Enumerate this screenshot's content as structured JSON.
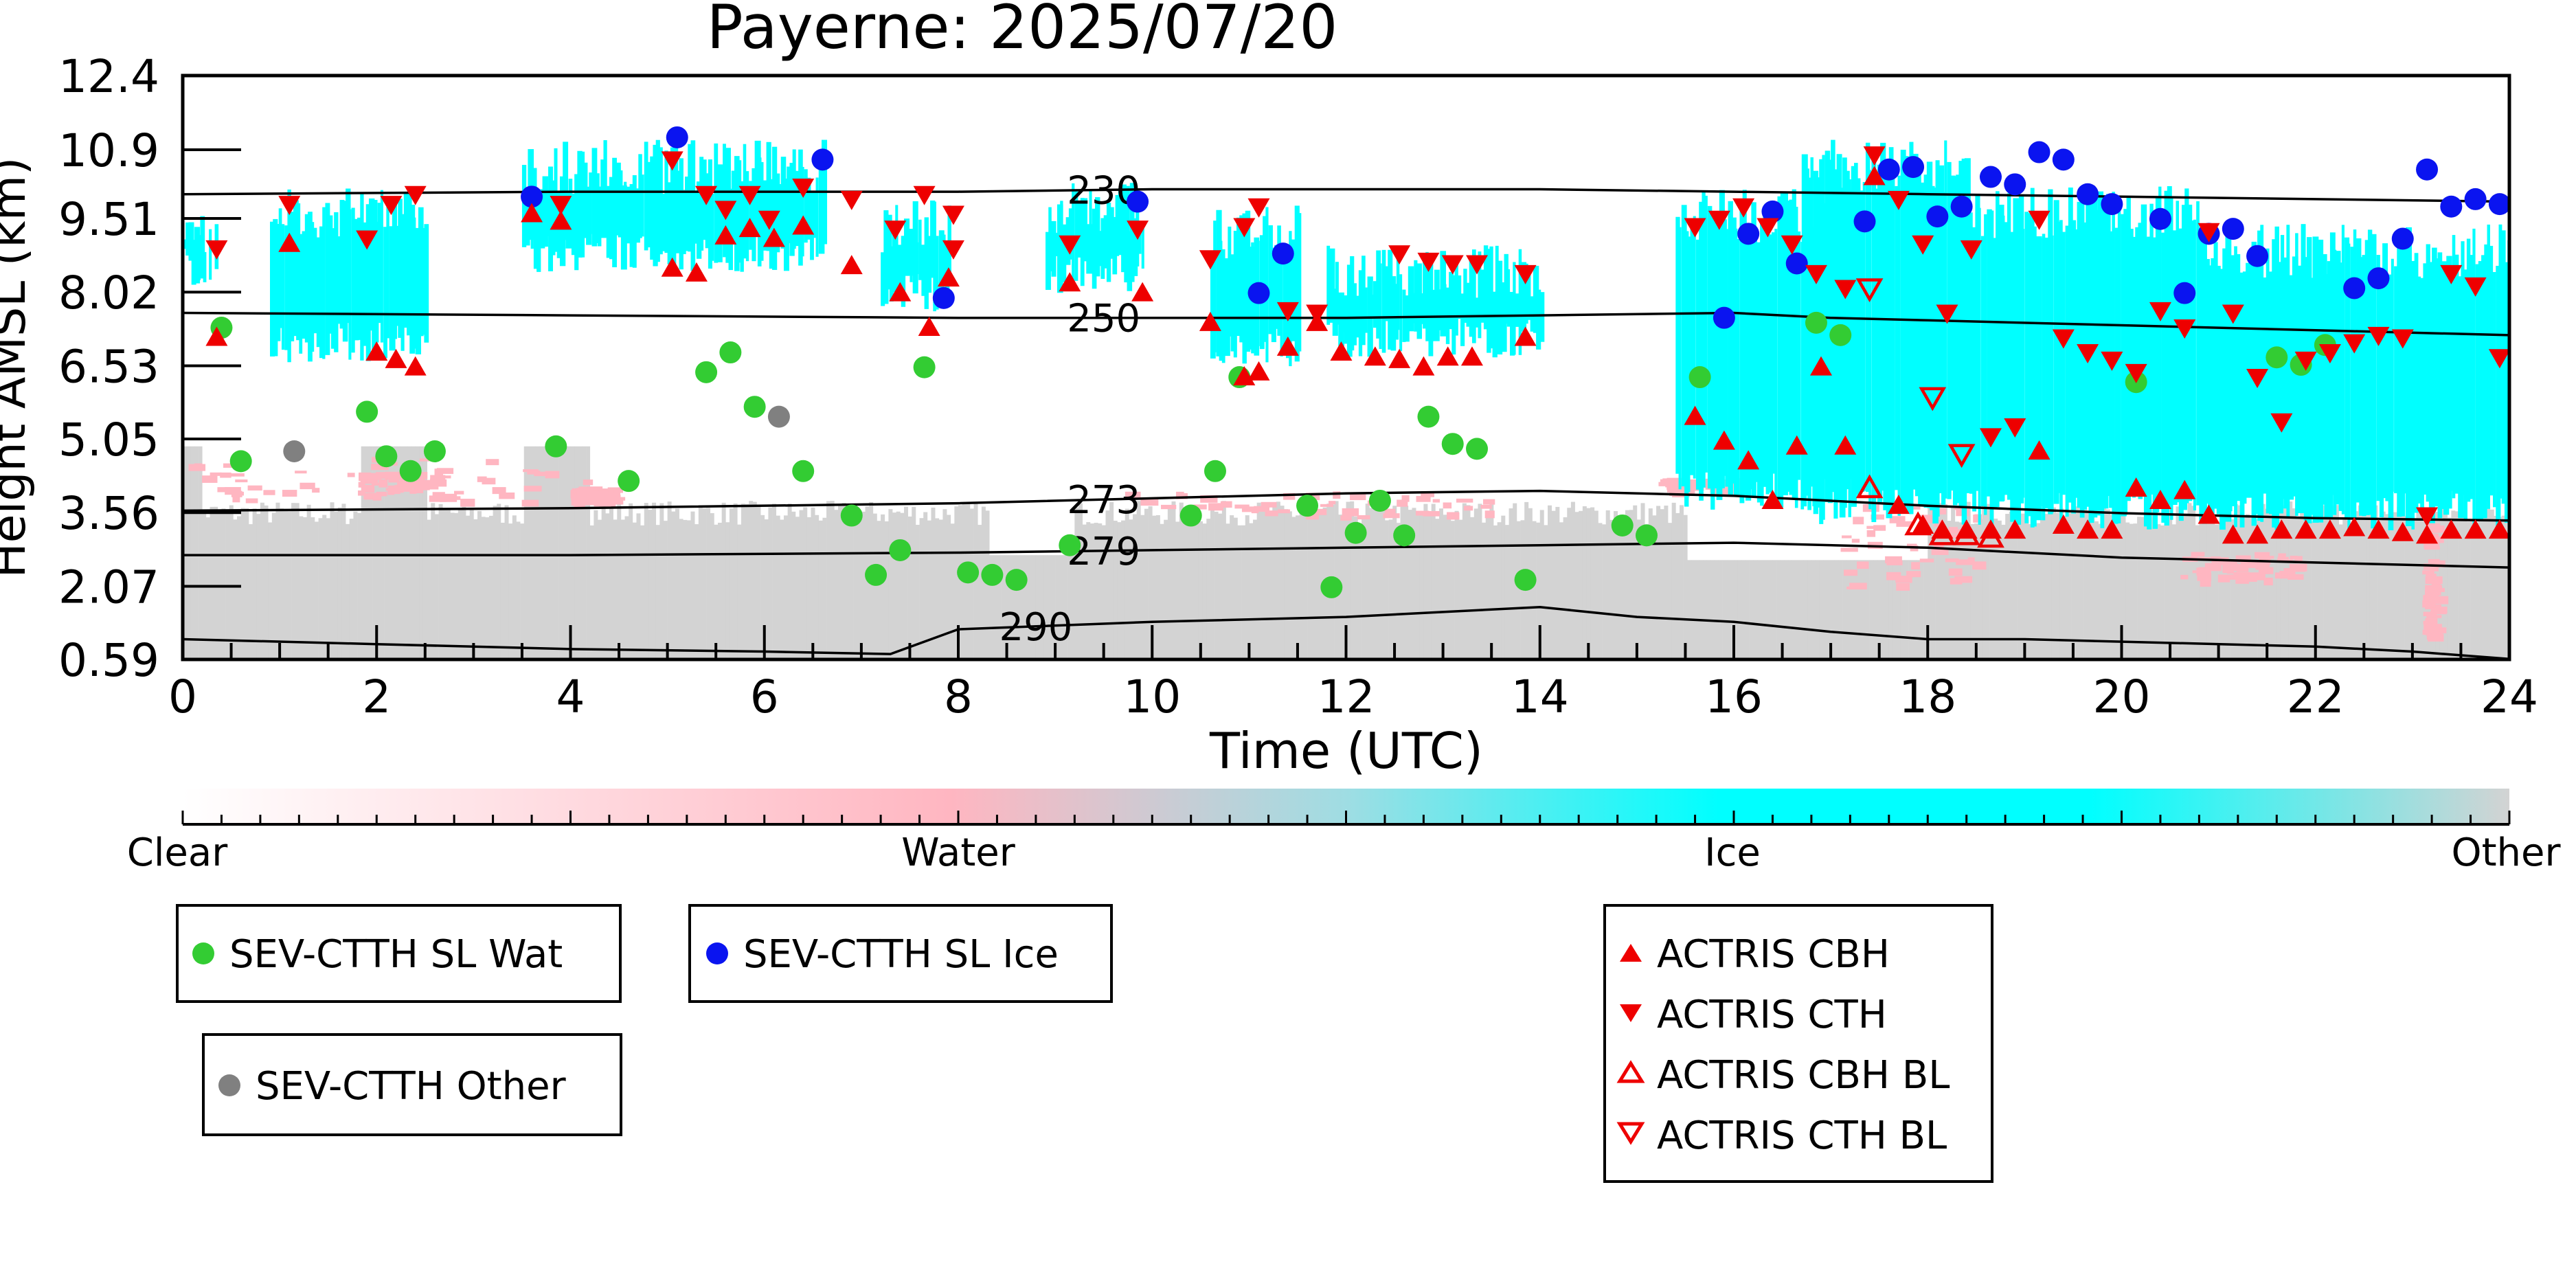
{
  "colors": {
    "water_dot": "#33cc33",
    "ice_dot": "#0a14f0",
    "other_dot": "#808080",
    "actris": "#ee0000",
    "ice_fill": "#00ffff",
    "other_fill": "#d3d3d3",
    "water_fill": "#ffb6c1"
  },
  "chart_data": {
    "type": "scatter",
    "title": "Payerne: 2025/07/20",
    "xlabel": "Time (UTC)",
    "ylabel": "Height AMSL (km)",
    "xlim": [
      0,
      24
    ],
    "ylim": [
      0.59,
      12.4
    ],
    "xticks": [
      "0",
      "2",
      "4",
      "6",
      "8",
      "10",
      "12",
      "14",
      "16",
      "18",
      "20",
      "22",
      "24"
    ],
    "yticks": [
      "12.4",
      "10.9",
      "9.51",
      "8.02",
      "6.53",
      "5.05",
      "3.56",
      "2.07",
      "0.59"
    ],
    "grid": false,
    "contours": [
      {
        "label": "230",
        "label_x": 9.5,
        "points": [
          [
            0,
            10.0
          ],
          [
            4,
            10.05
          ],
          [
            8,
            10.05
          ],
          [
            10,
            10.1
          ],
          [
            12,
            10.1
          ],
          [
            14,
            10.1
          ],
          [
            16,
            10.05
          ],
          [
            18,
            10.0
          ],
          [
            20,
            9.95
          ],
          [
            22,
            9.9
          ],
          [
            24,
            9.85
          ]
        ]
      },
      {
        "label": "250",
        "label_x": 9.5,
        "points": [
          [
            0,
            7.6
          ],
          [
            4,
            7.55
          ],
          [
            8,
            7.5
          ],
          [
            10,
            7.5
          ],
          [
            12,
            7.5
          ],
          [
            14,
            7.55
          ],
          [
            16,
            7.6
          ],
          [
            17,
            7.5
          ],
          [
            18,
            7.45
          ],
          [
            20,
            7.35
          ],
          [
            22,
            7.25
          ],
          [
            24,
            7.15
          ]
        ]
      },
      {
        "label": "273",
        "label_x": 9.5,
        "points": [
          [
            0,
            3.6
          ],
          [
            4,
            3.65
          ],
          [
            8,
            3.75
          ],
          [
            10,
            3.85
          ],
          [
            12,
            3.95
          ],
          [
            14,
            4.0
          ],
          [
            16,
            3.9
          ],
          [
            18,
            3.7
          ],
          [
            20,
            3.55
          ],
          [
            22,
            3.45
          ],
          [
            24,
            3.4
          ]
        ]
      },
      {
        "label": "279",
        "label_x": 9.5,
        "points": [
          [
            0,
            2.7
          ],
          [
            4,
            2.7
          ],
          [
            8,
            2.75
          ],
          [
            10,
            2.8
          ],
          [
            12,
            2.85
          ],
          [
            14,
            2.9
          ],
          [
            16,
            2.95
          ],
          [
            18,
            2.85
          ],
          [
            20,
            2.65
          ],
          [
            22,
            2.55
          ],
          [
            24,
            2.45
          ]
        ]
      },
      {
        "label": "290",
        "label_x": 8.8,
        "points": [
          [
            0,
            1.0
          ],
          [
            2,
            0.9
          ],
          [
            4,
            0.8
          ],
          [
            6,
            0.75
          ],
          [
            7.3,
            0.7
          ],
          [
            8,
            1.2
          ],
          [
            10,
            1.35
          ],
          [
            12,
            1.45
          ],
          [
            13,
            1.55
          ],
          [
            14,
            1.65
          ],
          [
            15,
            1.45
          ],
          [
            16,
            1.35
          ],
          [
            17,
            1.15
          ],
          [
            18,
            1.0
          ],
          [
            19,
            1.0
          ],
          [
            20,
            0.95
          ],
          [
            22,
            0.85
          ],
          [
            23,
            0.75
          ],
          [
            24,
            0.6
          ]
        ]
      }
    ],
    "series": [
      {
        "name": "SEV-CTTH SL Wat",
        "marker": "circle",
        "points": [
          [
            0.4,
            7.3
          ],
          [
            0.6,
            4.6
          ],
          [
            1.9,
            5.6
          ],
          [
            2.1,
            4.7
          ],
          [
            2.35,
            4.4
          ],
          [
            2.6,
            4.8
          ],
          [
            3.85,
            4.9
          ],
          [
            4.6,
            4.2
          ],
          [
            5.4,
            6.4
          ],
          [
            5.65,
            6.8
          ],
          [
            5.9,
            5.7
          ],
          [
            6.4,
            4.4
          ],
          [
            6.9,
            3.5
          ],
          [
            7.15,
            2.3
          ],
          [
            7.4,
            2.8
          ],
          [
            7.65,
            6.5
          ],
          [
            8.1,
            2.35
          ],
          [
            8.35,
            2.3
          ],
          [
            8.6,
            2.2
          ],
          [
            9.15,
            2.9
          ],
          [
            10.4,
            3.5
          ],
          [
            10.65,
            4.4
          ],
          [
            10.9,
            6.3
          ],
          [
            11.6,
            3.7
          ],
          [
            11.85,
            2.05
          ],
          [
            12.1,
            3.15
          ],
          [
            12.35,
            3.8
          ],
          [
            12.6,
            3.1
          ],
          [
            12.85,
            5.5
          ],
          [
            13.1,
            4.95
          ],
          [
            13.35,
            4.85
          ],
          [
            13.85,
            2.2
          ],
          [
            14.85,
            3.3
          ],
          [
            15.1,
            3.1
          ],
          [
            15.65,
            6.3
          ],
          [
            16.85,
            7.4
          ],
          [
            17.1,
            7.15
          ],
          [
            20.15,
            6.2
          ],
          [
            21.6,
            6.7
          ],
          [
            21.85,
            6.55
          ],
          [
            22.1,
            6.95
          ]
        ]
      },
      {
        "name": "SEV-CTTH SL Ice",
        "marker": "circle",
        "points": [
          [
            3.6,
            9.95
          ],
          [
            5.1,
            11.15
          ],
          [
            6.6,
            10.7
          ],
          [
            7.85,
            7.9
          ],
          [
            9.85,
            9.85
          ],
          [
            11.1,
            8.0
          ],
          [
            11.35,
            8.8
          ],
          [
            15.9,
            7.5
          ],
          [
            16.15,
            9.2
          ],
          [
            16.4,
            9.65
          ],
          [
            16.65,
            8.6
          ],
          [
            17.35,
            9.45
          ],
          [
            17.6,
            10.5
          ],
          [
            17.85,
            10.55
          ],
          [
            18.1,
            9.55
          ],
          [
            18.35,
            9.75
          ],
          [
            18.65,
            10.35
          ],
          [
            18.9,
            10.2
          ],
          [
            19.15,
            10.85
          ],
          [
            19.4,
            10.7
          ],
          [
            19.65,
            10.0
          ],
          [
            19.9,
            9.8
          ],
          [
            20.4,
            9.5
          ],
          [
            20.65,
            8.0
          ],
          [
            20.9,
            9.2
          ],
          [
            21.15,
            9.3
          ],
          [
            21.4,
            8.75
          ],
          [
            22.4,
            8.1
          ],
          [
            22.65,
            8.3
          ],
          [
            22.9,
            9.1
          ],
          [
            23.15,
            10.5
          ],
          [
            23.4,
            9.75
          ],
          [
            23.65,
            9.9
          ],
          [
            23.9,
            9.8
          ]
        ]
      },
      {
        "name": "SEV-CTTH Other",
        "marker": "circle",
        "points": [
          [
            1.15,
            4.8
          ],
          [
            6.15,
            5.5
          ]
        ]
      },
      {
        "name": "ACTRIS CBH",
        "marker": "triangle-up",
        "points": [
          [
            0.35,
            7.1
          ],
          [
            1.1,
            9.0
          ],
          [
            2.0,
            6.8
          ],
          [
            2.2,
            6.65
          ],
          [
            2.4,
            6.5
          ],
          [
            3.6,
            9.6
          ],
          [
            3.9,
            9.45
          ],
          [
            5.05,
            8.5
          ],
          [
            5.3,
            8.4
          ],
          [
            5.6,
            9.15
          ],
          [
            5.85,
            9.3
          ],
          [
            6.1,
            9.1
          ],
          [
            6.4,
            9.35
          ],
          [
            6.9,
            8.55
          ],
          [
            7.4,
            8.0
          ],
          [
            7.7,
            7.3
          ],
          [
            7.9,
            8.3
          ],
          [
            9.15,
            8.2
          ],
          [
            9.9,
            8.0
          ],
          [
            10.6,
            7.4
          ],
          [
            10.95,
            6.3
          ],
          [
            11.1,
            6.4
          ],
          [
            11.4,
            6.9
          ],
          [
            11.7,
            7.4
          ],
          [
            11.95,
            6.8
          ],
          [
            12.3,
            6.7
          ],
          [
            12.55,
            6.65
          ],
          [
            12.8,
            6.5
          ],
          [
            13.05,
            6.7
          ],
          [
            13.3,
            6.7
          ],
          [
            13.85,
            7.1
          ],
          [
            15.6,
            5.5
          ],
          [
            15.9,
            5.0
          ],
          [
            16.15,
            4.6
          ],
          [
            16.4,
            3.8
          ],
          [
            16.65,
            4.9
          ],
          [
            16.9,
            6.5
          ],
          [
            17.15,
            4.9
          ],
          [
            17.45,
            10.35
          ],
          [
            17.7,
            3.7
          ],
          [
            17.95,
            3.3
          ],
          [
            18.15,
            3.2
          ],
          [
            18.4,
            3.2
          ],
          [
            18.65,
            3.2
          ],
          [
            18.9,
            3.2
          ],
          [
            19.15,
            4.8
          ],
          [
            19.4,
            3.3
          ],
          [
            19.65,
            3.2
          ],
          [
            19.9,
            3.2
          ],
          [
            20.15,
            4.05
          ],
          [
            20.4,
            3.8
          ],
          [
            20.65,
            4.0
          ],
          [
            20.9,
            3.5
          ],
          [
            21.15,
            3.1
          ],
          [
            21.4,
            3.1
          ],
          [
            21.65,
            3.2
          ],
          [
            21.9,
            3.2
          ],
          [
            22.15,
            3.2
          ],
          [
            22.4,
            3.25
          ],
          [
            22.65,
            3.2
          ],
          [
            22.9,
            3.15
          ],
          [
            23.15,
            3.1
          ],
          [
            23.4,
            3.2
          ],
          [
            23.65,
            3.2
          ],
          [
            23.9,
            3.2
          ]
        ]
      },
      {
        "name": "ACTRIS CTH",
        "marker": "triangle-down",
        "points": [
          [
            0.35,
            8.9
          ],
          [
            1.1,
            9.8
          ],
          [
            1.9,
            9.1
          ],
          [
            2.15,
            9.8
          ],
          [
            2.4,
            10.0
          ],
          [
            3.9,
            9.8
          ],
          [
            5.05,
            10.7
          ],
          [
            5.4,
            10.0
          ],
          [
            5.6,
            9.7
          ],
          [
            5.85,
            10.0
          ],
          [
            6.05,
            9.5
          ],
          [
            6.4,
            10.15
          ],
          [
            6.9,
            9.9
          ],
          [
            7.35,
            9.3
          ],
          [
            7.65,
            10.0
          ],
          [
            7.95,
            9.6
          ],
          [
            7.95,
            8.9
          ],
          [
            9.15,
            9.0
          ],
          [
            9.85,
            9.3
          ],
          [
            10.6,
            8.7
          ],
          [
            10.95,
            9.35
          ],
          [
            11.1,
            9.75
          ],
          [
            11.4,
            7.65
          ],
          [
            11.7,
            7.6
          ],
          [
            12.55,
            8.8
          ],
          [
            12.85,
            8.65
          ],
          [
            13.1,
            8.6
          ],
          [
            13.35,
            8.6
          ],
          [
            13.85,
            8.4
          ],
          [
            15.6,
            9.35
          ],
          [
            15.85,
            9.5
          ],
          [
            16.1,
            9.75
          ],
          [
            16.35,
            9.35
          ],
          [
            16.6,
            9.0
          ],
          [
            16.85,
            8.4
          ],
          [
            17.15,
            8.1
          ],
          [
            17.45,
            10.8
          ],
          [
            17.7,
            9.9
          ],
          [
            17.95,
            9.0
          ],
          [
            18.2,
            7.6
          ],
          [
            18.45,
            8.9
          ],
          [
            18.65,
            5.1
          ],
          [
            18.9,
            5.3
          ],
          [
            19.15,
            9.5
          ],
          [
            19.4,
            7.1
          ],
          [
            19.65,
            6.8
          ],
          [
            19.9,
            6.65
          ],
          [
            20.15,
            6.4
          ],
          [
            20.4,
            7.65
          ],
          [
            20.65,
            7.3
          ],
          [
            20.9,
            9.25
          ],
          [
            21.15,
            7.6
          ],
          [
            21.4,
            6.3
          ],
          [
            21.65,
            5.4
          ],
          [
            21.9,
            6.65
          ],
          [
            22.15,
            6.8
          ],
          [
            22.4,
            7.0
          ],
          [
            22.65,
            7.15
          ],
          [
            22.9,
            7.1
          ],
          [
            23.15,
            3.5
          ],
          [
            23.4,
            8.4
          ],
          [
            23.65,
            8.15
          ],
          [
            23.9,
            6.7
          ]
        ]
      },
      {
        "name": "ACTRIS CBH BL",
        "marker": "triangle-up-open",
        "points": [
          [
            17.4,
            4.05
          ],
          [
            17.9,
            3.3
          ],
          [
            18.15,
            3.1
          ],
          [
            18.4,
            3.1
          ],
          [
            18.65,
            3.05
          ]
        ]
      },
      {
        "name": "ACTRIS CTH BL",
        "marker": "triangle-down-open",
        "points": [
          [
            17.4,
            8.1
          ],
          [
            18.05,
            5.9
          ],
          [
            18.35,
            4.75
          ]
        ]
      }
    ],
    "colorbar": {
      "ticks": [
        "Clear",
        "Water",
        "Ice",
        "Other"
      ]
    },
    "legend": {
      "placement": "below plot",
      "entries": [
        "SEV-CTTH SL Wat",
        "SEV-CTTH SL Ice",
        "SEV-CTTH Other",
        "ACTRIS CBH",
        "ACTRIS CTH",
        "ACTRIS CBH BL",
        "ACTRIS CTH BL"
      ]
    }
  }
}
